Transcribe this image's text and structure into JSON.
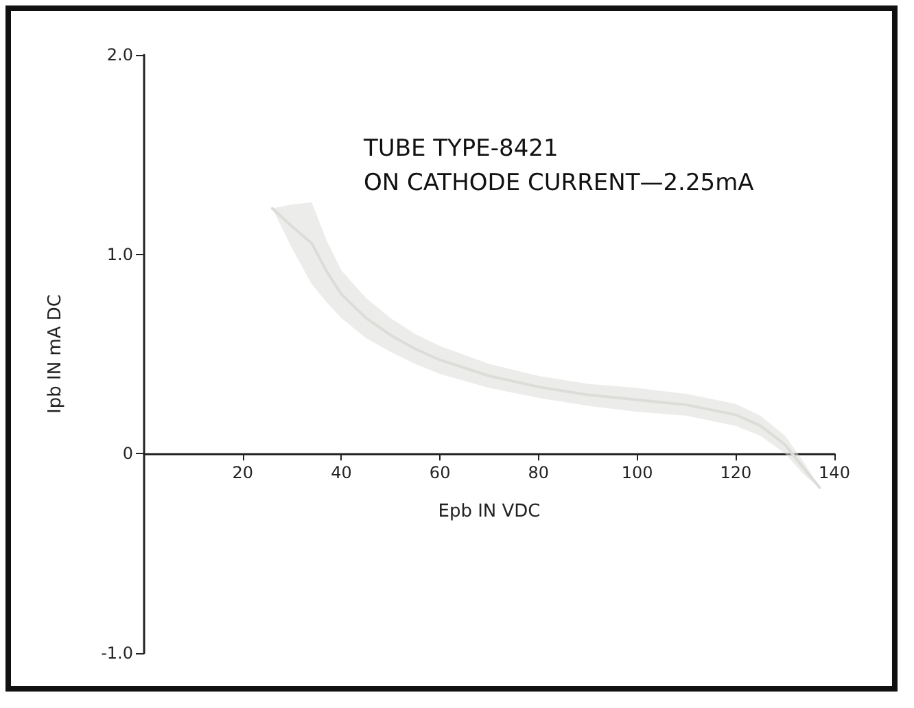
{
  "chart_data": {
    "type": "line",
    "title": "TUBE TYPE-8421",
    "subtitle": "ON CATHODE CURRENT—2.25mA",
    "xlabel": "Epb IN VDC",
    "ylabel": "Ipb IN mA DC",
    "x": [
      26,
      30,
      34,
      37,
      40,
      45,
      50,
      55,
      60,
      70,
      80,
      90,
      100,
      110,
      120,
      125,
      130,
      134,
      137
    ],
    "series": [
      {
        "color": "#dcdcd8",
        "values": [
          1.23,
          1.14,
          1.055,
          0.915,
          0.8,
          0.68,
          0.595,
          0.525,
          0.47,
          0.39,
          0.335,
          0.295,
          0.27,
          0.245,
          0.195,
          0.14,
          0.045,
          -0.08,
          -0.17
        ],
        "lower": [
          1.23,
          1.03,
          0.85,
          0.76,
          0.68,
          0.58,
          0.51,
          0.45,
          0.4,
          0.33,
          0.28,
          0.24,
          0.21,
          0.19,
          0.14,
          0.09,
          0.0,
          -0.11,
          -0.17
        ],
        "upper": [
          1.23,
          1.25,
          1.26,
          1.07,
          0.92,
          0.78,
          0.68,
          0.6,
          0.54,
          0.45,
          0.39,
          0.35,
          0.33,
          0.3,
          0.25,
          0.19,
          0.09,
          -0.05,
          -0.17
        ]
      }
    ],
    "xlim": [
      0,
      140
    ],
    "xticks": [
      20,
      40,
      60,
      80,
      100,
      120,
      140
    ],
    "ylim": [
      -1,
      2
    ],
    "yticks": [
      {
        "value": -1,
        "label": "-1.0"
      },
      0,
      {
        "value": 1,
        "label": "1.0"
      },
      {
        "value": 2,
        "label": "2.0"
      }
    ],
    "marker": "none",
    "line_style": "solid"
  }
}
